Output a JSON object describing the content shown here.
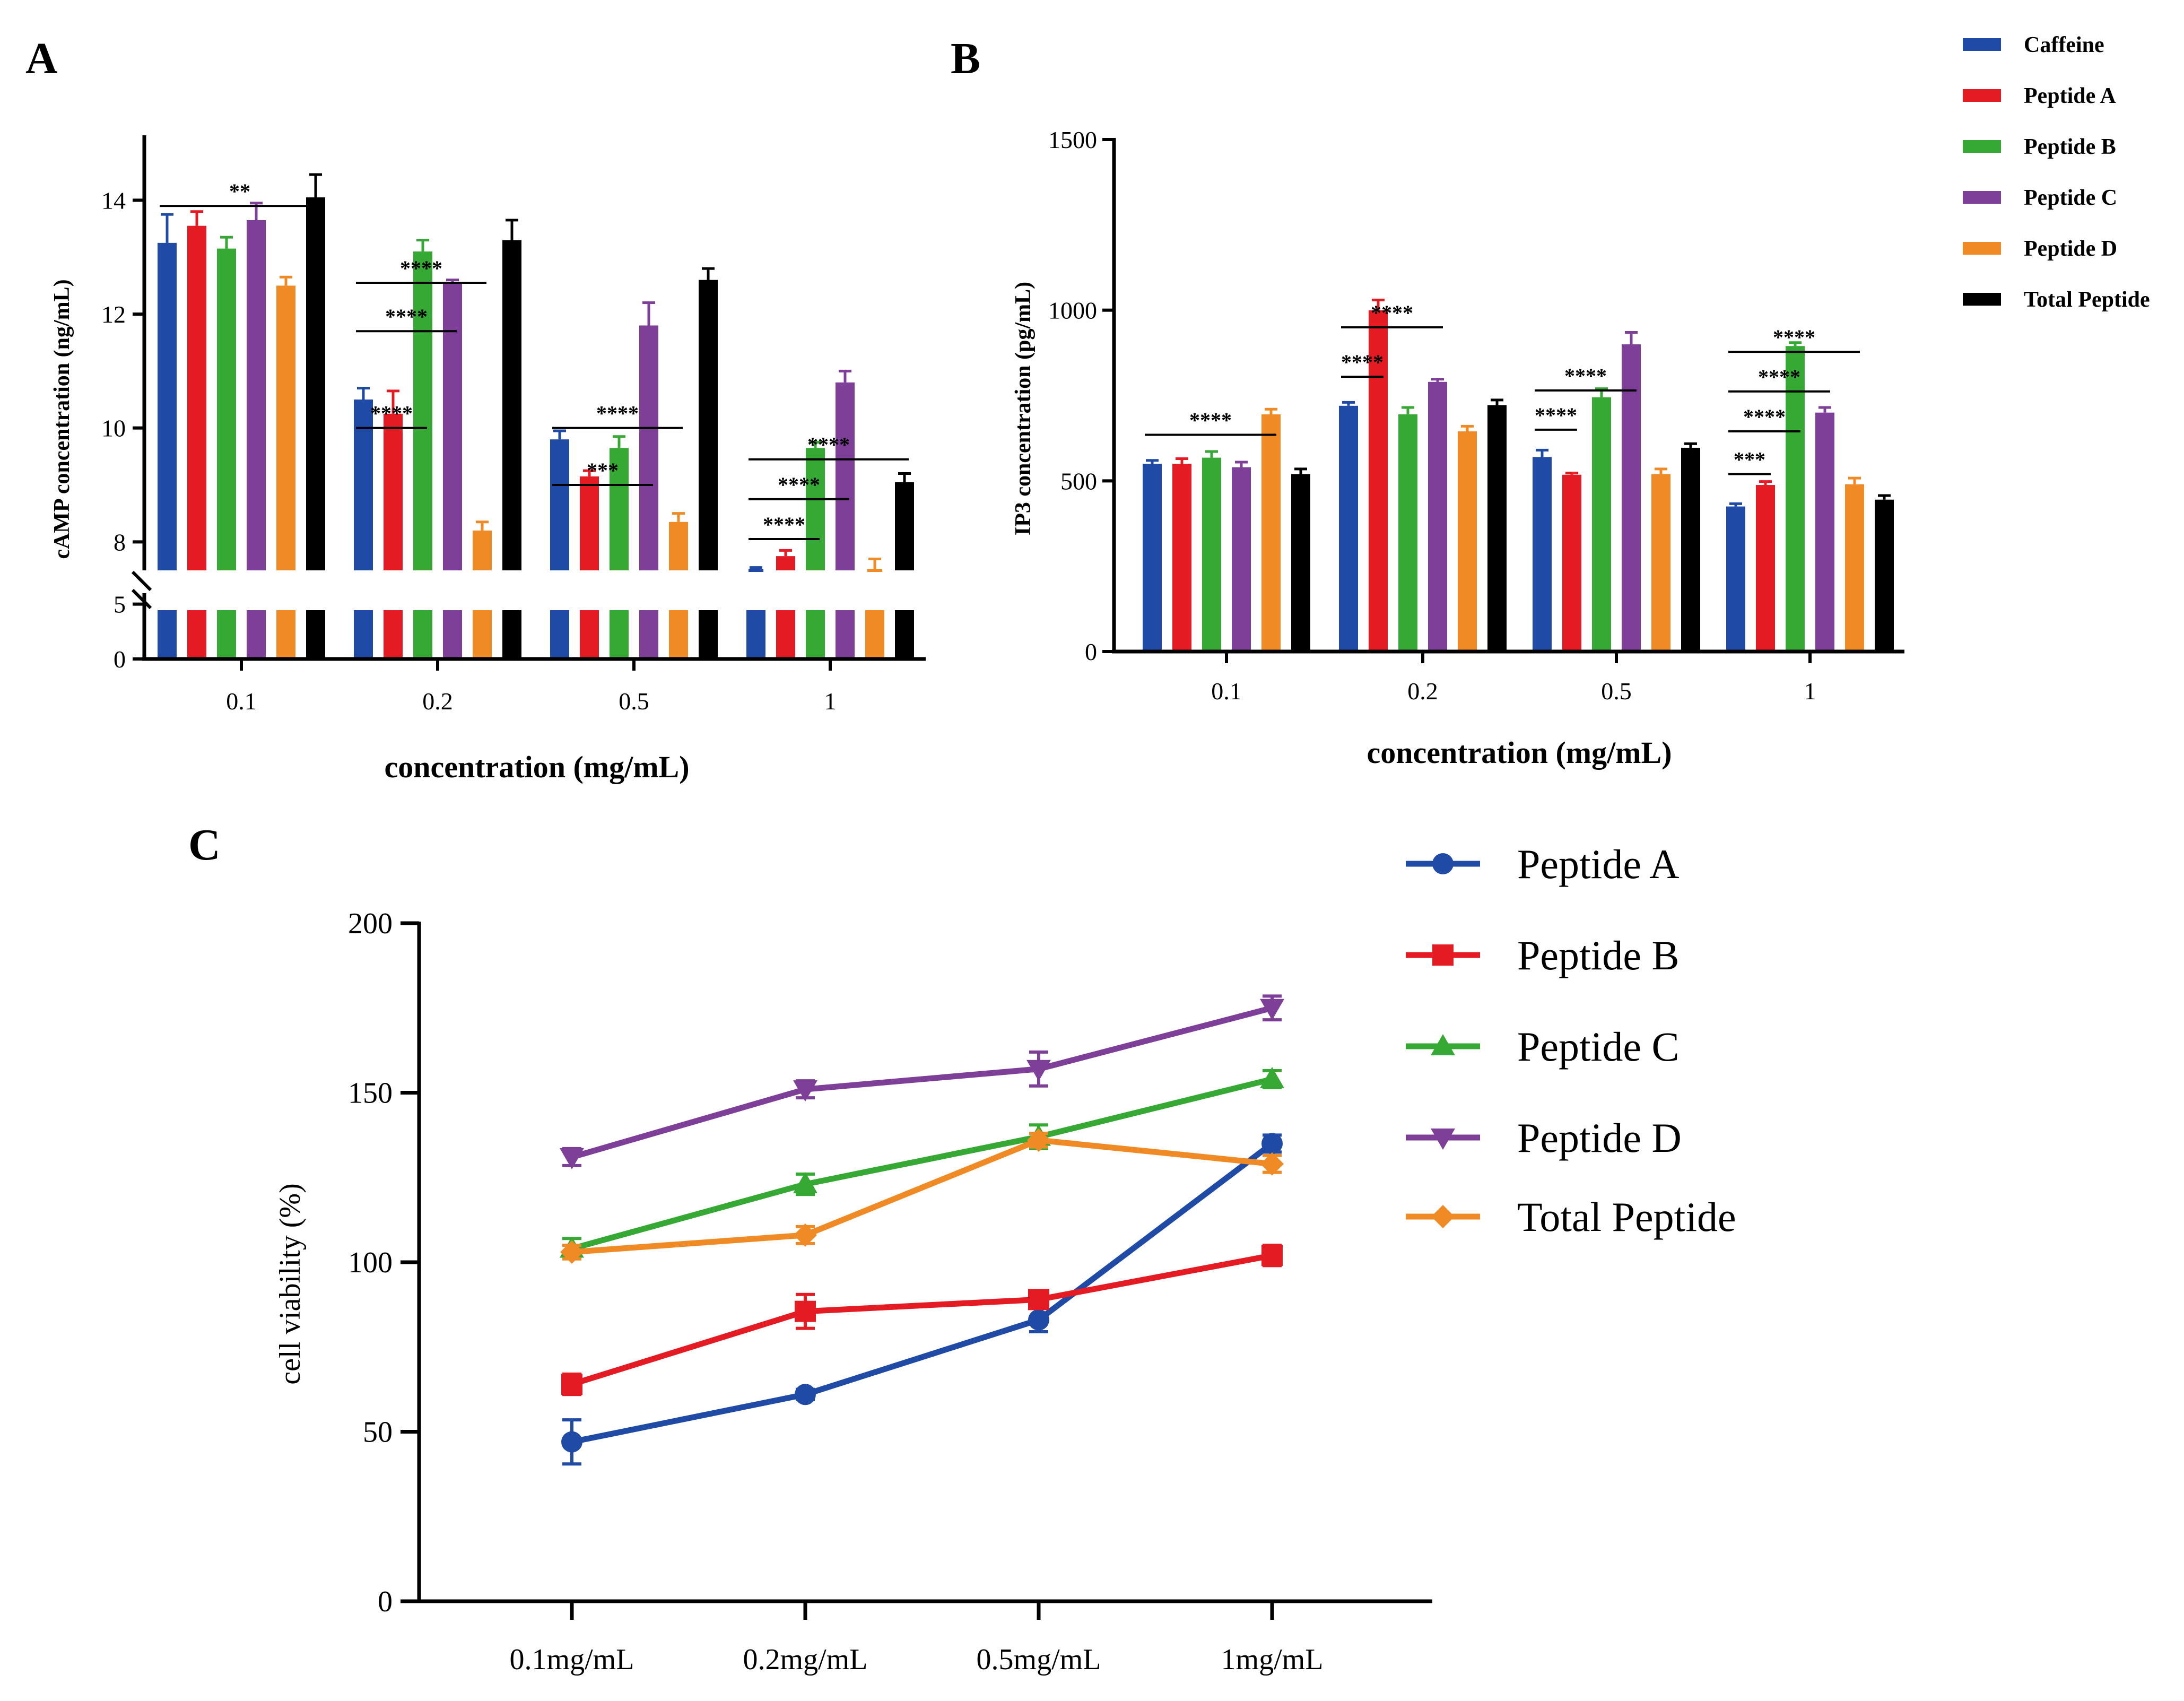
{
  "colors": {
    "Caffeine": "#1f4aa6",
    "Peptide A": "#e41b23",
    "Peptide B": "#36a935",
    "Peptide C": "#7d3f98",
    "Peptide D": "#f08a24",
    "Total Peptide": "#000000",
    "lineA": "#1f4aa6",
    "lineB": "#e41b23",
    "lineC": "#36a935",
    "lineD": "#7d3f98",
    "lineTotal": "#f08a24"
  },
  "panels": {
    "a": "A",
    "b": "B",
    "c": "C"
  },
  "legend_ab": [
    "Caffeine",
    "Peptide A",
    "Peptide B",
    "Peptide C",
    "Peptide D",
    "Total Peptide"
  ],
  "chart_data": [
    {
      "id": "A",
      "type": "bar",
      "title": "",
      "xlabel": "concentration (mg/mL)",
      "ylabel": "cAMP concentration (ng/mL)",
      "categories": [
        "0.1",
        "0.2",
        "0.5",
        "1"
      ],
      "ylim_lower": [
        0,
        6
      ],
      "ylim_upper": [
        7.5,
        15
      ],
      "yticks_lower": [
        "0",
        "5"
      ],
      "yticks_upper": [
        "8",
        "10",
        "12",
        "14"
      ],
      "axis_break": true,
      "series": [
        {
          "name": "Caffeine",
          "values": [
            13.25,
            10.5,
            9.8,
            7.5
          ],
          "errors": [
            0.5,
            0.2,
            0.15,
            0.05
          ]
        },
        {
          "name": "Peptide A",
          "values": [
            13.55,
            10.25,
            9.15,
            7.75
          ],
          "errors": [
            0.25,
            0.4,
            0.1,
            0.1
          ]
        },
        {
          "name": "Peptide B",
          "values": [
            13.15,
            13.1,
            9.65,
            9.65
          ],
          "errors": [
            0.2,
            0.2,
            0.2,
            0.1
          ]
        },
        {
          "name": "Peptide C",
          "values": [
            13.65,
            12.55,
            11.8,
            10.8
          ],
          "errors": [
            0.3,
            0.05,
            0.4,
            0.2
          ]
        },
        {
          "name": "Peptide D",
          "values": [
            12.5,
            8.2,
            8.35,
            7.45
          ],
          "errors": [
            0.15,
            0.15,
            0.15,
            0.25
          ]
        },
        {
          "name": "Total Peptide",
          "values": [
            14.05,
            13.3,
            12.6,
            9.05
          ],
          "errors": [
            0.4,
            0.35,
            0.2,
            0.15
          ]
        }
      ],
      "annotations": [
        {
          "label": "**",
          "group": 0,
          "from": 0,
          "to": 5,
          "y": 13.9
        },
        {
          "label": "****",
          "group": 1,
          "from": 0,
          "to": 2,
          "y": 10.0
        },
        {
          "label": "****",
          "group": 1,
          "from": 0,
          "to": 3,
          "y": 11.7
        },
        {
          "label": "****",
          "group": 1,
          "from": 0,
          "to": 4,
          "y": 12.55
        },
        {
          "label": "***",
          "group": 2,
          "from": 0,
          "to": 3,
          "y": 9.0
        },
        {
          "label": "****",
          "group": 2,
          "from": 0,
          "to": 4,
          "y": 10.0
        },
        {
          "label": "****",
          "group": 3,
          "from": 0,
          "to": 2,
          "y": 8.05
        },
        {
          "label": "****",
          "group": 3,
          "from": 0,
          "to": 3,
          "y": 8.75
        },
        {
          "label": "****",
          "group": 3,
          "from": 0,
          "to": 5,
          "y": 9.45
        }
      ]
    },
    {
      "id": "B",
      "type": "bar",
      "title": "",
      "xlabel": "concentration (mg/mL)",
      "ylabel": "IP3 concentration (pg/mL)",
      "categories": [
        "0.1",
        "0.2",
        "0.5",
        "1"
      ],
      "ylim": [
        0,
        1500
      ],
      "yticks": [
        "0",
        "500",
        "1000",
        "1500"
      ],
      "series": [
        {
          "name": "Caffeine",
          "values": [
            550,
            720,
            570,
            425
          ],
          "errors": [
            10,
            10,
            20,
            8
          ]
        },
        {
          "name": "Peptide A",
          "values": [
            550,
            1000,
            518,
            488
          ],
          "errors": [
            15,
            30,
            5,
            10
          ]
        },
        {
          "name": "Peptide B",
          "values": [
            568,
            695,
            745,
            895
          ],
          "errors": [
            18,
            20,
            25,
            10
          ]
        },
        {
          "name": "Peptide C",
          "values": [
            540,
            790,
            900,
            700
          ],
          "errors": [
            15,
            8,
            35,
            15
          ]
        },
        {
          "name": "Peptide D",
          "values": [
            695,
            645,
            520,
            490
          ],
          "errors": [
            15,
            15,
            15,
            18
          ]
        },
        {
          "name": "Total Peptide",
          "values": [
            520,
            722,
            597,
            445
          ],
          "errors": [
            15,
            15,
            12,
            12
          ]
        }
      ],
      "annotations": [
        {
          "label": "****",
          "group": 0,
          "from": 0,
          "to": 4,
          "y": 635
        },
        {
          "label": "****",
          "group": 1,
          "from": 0,
          "to": 1,
          "y": 805
        },
        {
          "label": "****",
          "group": 1,
          "from": 0,
          "to": 3,
          "y": 950
        },
        {
          "label": "****",
          "group": 2,
          "from": 0,
          "to": 1,
          "y": 650
        },
        {
          "label": "****",
          "group": 2,
          "from": 0,
          "to": 3,
          "y": 765
        },
        {
          "label": "***",
          "group": 3,
          "from": 0,
          "to": 1,
          "y": 520
        },
        {
          "label": "****",
          "group": 3,
          "from": 0,
          "to": 2,
          "y": 645
        },
        {
          "label": "****",
          "group": 3,
          "from": 0,
          "to": 3,
          "y": 762
        },
        {
          "label": "****",
          "group": 3,
          "from": 0,
          "to": 4,
          "y": 878
        }
      ]
    },
    {
      "id": "C",
      "type": "line",
      "title": "",
      "xlabel": "",
      "ylabel": "cell viability (%)",
      "x": [
        "0.1mg/mL",
        "0.2mg/mL",
        "0.5mg/mL",
        "1mg/mL"
      ],
      "ylim": [
        0,
        200
      ],
      "yticks": [
        "0",
        "50",
        "100",
        "150",
        "200"
      ],
      "legend_position": "right",
      "series": [
        {
          "name": "Peptide A",
          "marker": "circle",
          "color": "lineA",
          "values": [
            47,
            61,
            83,
            135
          ],
          "errors": [
            6.5,
            1.5,
            3.5,
            2.5
          ]
        },
        {
          "name": "Peptide B",
          "marker": "square",
          "color": "lineB",
          "values": [
            64,
            85.5,
            89,
            102
          ],
          "errors": [
            3,
            5,
            2.5,
            3
          ]
        },
        {
          "name": "Peptide C",
          "marker": "triangle-up",
          "color": "lineC",
          "values": [
            104,
            123,
            137,
            154
          ],
          "errors": [
            3,
            3,
            3.5,
            2.5
          ]
        },
        {
          "name": "Peptide D",
          "marker": "triangle-down",
          "color": "lineD",
          "values": [
            131,
            151,
            157,
            175
          ],
          "errors": [
            2.5,
            2.5,
            5,
            3.5
          ]
        },
        {
          "name": "Total Peptide",
          "marker": "diamond",
          "color": "lineTotal",
          "values": [
            103,
            108,
            136,
            129
          ],
          "errors": [
            2,
            2.5,
            2,
            2.5
          ]
        }
      ]
    }
  ]
}
